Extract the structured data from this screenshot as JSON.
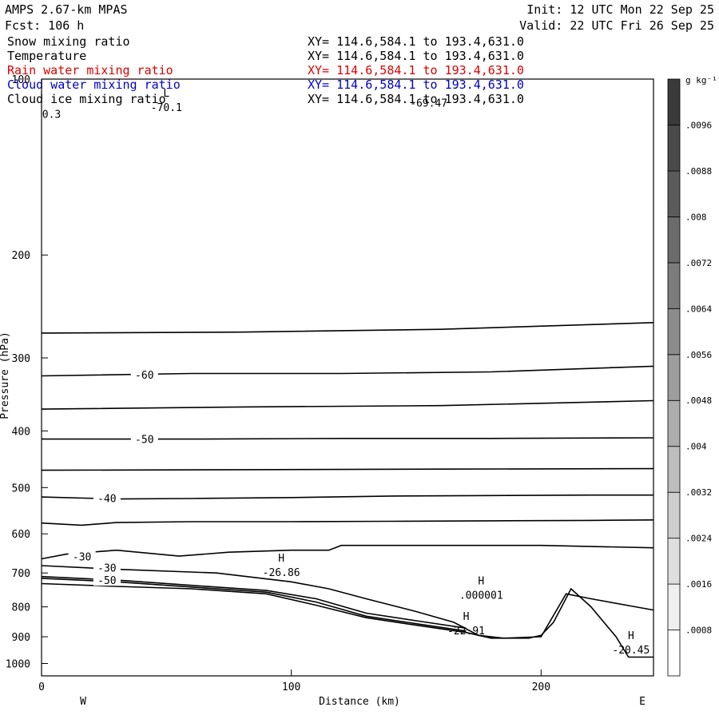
{
  "header": {
    "left_lines": [
      "AMPS 2.67-km MPAS",
      "Fcst:  106 h"
    ],
    "right_lines": [
      "Init: 12 UTC Mon 22 Sep 25",
      "Valid: 22 UTC Fri 26 Sep 25"
    ],
    "fields": [
      {
        "name": "Snow mixing ratio",
        "xy": "XY= 114.6,584.1 to 193.4,631.0",
        "color": "#000000"
      },
      {
        "name": "Temperature",
        "xy": "XY= 114.6,584.1 to 193.4,631.0",
        "color": "#000000"
      },
      {
        "name": "Rain water mixing ratio",
        "xy": "XY= 114.6,584.1 to 193.4,631.0",
        "color": "#dd0000"
      },
      {
        "name": "Cloud water mixing ratio",
        "xy": "XY= 114.6,584.1 to 193.4,631.0",
        "color": "#0000cc"
      },
      {
        "name": "Cloud ice mixing ratio",
        "xy": "XY= 114.6,584.1 to 193.4,631.0",
        "color": "#000000"
      }
    ]
  },
  "chart_data": {
    "type": "line",
    "title": "",
    "xlabel": "Distance (km)",
    "ylabel": "Pressure (hPa)",
    "xlim": [
      0,
      245
    ],
    "ylim": [
      1050,
      100
    ],
    "y_scale": "log",
    "x_ticks": [
      0,
      100,
      200
    ],
    "y_ticks": [
      100,
      200,
      300,
      400,
      500,
      600,
      700,
      800,
      900,
      1000
    ],
    "x_end_labels": {
      "left": "W",
      "right": "E"
    },
    "grid": false,
    "series": [
      {
        "label": "",
        "x": [
          0,
          80,
          160,
          245
        ],
        "y": [
          272,
          271,
          268,
          261
        ]
      },
      {
        "label": "-60",
        "x": [
          0,
          60,
          120,
          180,
          245
        ],
        "y": [
          322,
          319,
          319,
          317,
          310
        ]
      },
      {
        "label": "",
        "x": [
          0,
          80,
          160,
          245
        ],
        "y": [
          367,
          364,
          362,
          355
        ]
      },
      {
        "label": "-50",
        "x": [
          0,
          60,
          120,
          180,
          245
        ],
        "y": [
          413,
          413,
          412,
          412,
          411
        ]
      },
      {
        "label": "",
        "x": [
          0,
          80,
          160,
          245
        ],
        "y": [
          467,
          466,
          465,
          464
        ]
      },
      {
        "label": "-40",
        "x": [
          0,
          30,
          60,
          100,
          140,
          180,
          220,
          245
        ],
        "y": [
          519,
          523,
          522,
          520,
          517,
          516,
          515,
          515
        ]
      },
      {
        "label": "",
        "x": [
          0,
          16,
          30,
          60,
          100,
          140,
          180,
          220,
          245
        ],
        "y": [
          575,
          580,
          574,
          572,
          572,
          571,
          570,
          569,
          568
        ]
      },
      {
        "label": "-30",
        "x": [
          0,
          10,
          30,
          55,
          75,
          100,
          115,
          120,
          160,
          200,
          245
        ],
        "y": [
          662,
          650,
          640,
          655,
          645,
          640,
          640,
          628,
          628,
          628,
          634
        ]
      },
      {
        "label": "-30",
        "x": [
          0,
          30,
          70,
          100,
          115,
          130,
          150,
          165,
          175,
          185,
          200,
          210,
          220,
          245
        ],
        "y": [
          680,
          690,
          700,
          725,
          745,
          775,
          815,
          850,
          895,
          905,
          900,
          760,
          775,
          810
        ]
      },
      {
        "label": "-40",
        "x": [
          0,
          30,
          60,
          90,
          110,
          130,
          150,
          170
        ],
        "y": [
          710,
          720,
          735,
          750,
          775,
          820,
          845,
          870
        ]
      },
      {
        "label": "-50",
        "x": [
          0,
          30,
          60,
          90,
          110,
          130,
          150,
          170
        ],
        "y": [
          715,
          725,
          740,
          755,
          785,
          830,
          855,
          880
        ]
      },
      {
        "label": "",
        "x": [
          0,
          30,
          60,
          90,
          110,
          130,
          150,
          170,
          180,
          195,
          200,
          205,
          212,
          220,
          230,
          235,
          245
        ],
        "y": [
          730,
          738,
          745,
          760,
          795,
          835,
          860,
          885,
          905,
          905,
          895,
          850,
          745,
          800,
          900,
          975,
          975
        ]
      }
    ],
    "extrema_labels": [
      {
        "kind": "L",
        "value": "-70.1",
        "x": 50,
        "y": 112
      },
      {
        "kind": "",
        "value": "0.3",
        "x": 4,
        "y": 115
      },
      {
        "kind": "",
        "value": "-69.47",
        "x": 155,
        "y": 110
      },
      {
        "kind": "H",
        "value": "-26.86",
        "x": 96,
        "y": 700
      },
      {
        "kind": "H",
        "value": ".000001",
        "x": 176,
        "y": 765
      },
      {
        "kind": "H",
        "value": "-22.91",
        "x": 170,
        "y": 880
      },
      {
        "kind": "H",
        "value": "-20.45",
        "x": 236,
        "y": 950
      }
    ]
  },
  "colorbar": {
    "units": "g kg⁻¹",
    "min": 0,
    "max": 0.0104,
    "ticks": [
      ".0008",
      ".0016",
      ".0024",
      ".0032",
      ".004",
      ".0048",
      ".0056",
      ".0064",
      ".0072",
      ".008",
      ".0088",
      ".0096"
    ],
    "color_low": "#ffffff",
    "color_high": "#3a3a3a"
  }
}
